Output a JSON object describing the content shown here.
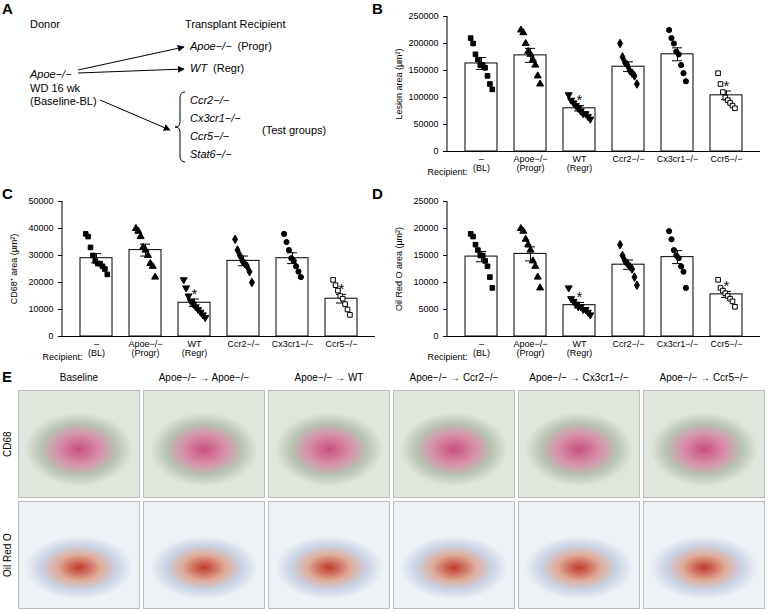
{
  "panel_labels": [
    "A",
    "B",
    "C",
    "D",
    "E"
  ],
  "diagram": {
    "donor_header": "Donor",
    "recipient_header": "Transplant Recipient",
    "donor": "Apoe−/−",
    "donor_notes": [
      "WD 16 wk",
      "(Baseline-BL)"
    ],
    "recipients": [
      {
        "name": "Apoe−/−",
        "note": "(Progr)"
      },
      {
        "name": "WT",
        "note": "(Regr)"
      },
      {
        "name": "Ccr2−/−"
      },
      {
        "name": "Cx3cr1−/−"
      },
      {
        "name": "Ccr5−/−"
      },
      {
        "name": "Stat6−/−"
      }
    ],
    "test_group_label": "(Test groups)"
  },
  "chart_data": [
    {
      "type": "bar",
      "ylabel": "Lesion area (µm²)",
      "xlabel": "Recipient:",
      "categories": [
        "–\n(BL)",
        "Apoe−/−\n(Progr)",
        "WT\n(Regr)",
        "Ccr2−/−",
        "Cx3cr1−/−",
        "Ccr5−/−"
      ],
      "values": [
        163000,
        178000,
        80000,
        157000,
        180000,
        104000
      ],
      "errors": [
        11000,
        13000,
        5000,
        9000,
        12000,
        8000
      ],
      "points": [
        [
          210000,
          200000,
          180000,
          170000,
          160000,
          160000,
          155000,
          140000,
          125000,
          115000
        ],
        [
          225000,
          220000,
          200000,
          185000,
          180000,
          170000,
          160000,
          140000,
          125000
        ],
        [
          105000,
          95000,
          90000,
          85000,
          80000,
          75000,
          70000,
          70000,
          65000,
          60000
        ],
        [
          200000,
          175000,
          165000,
          160000,
          150000,
          145000,
          140000,
          125000
        ],
        [
          225000,
          210000,
          200000,
          185000,
          180000,
          160000,
          145000,
          130000
        ],
        [
          145000,
          125000,
          110000,
          100000,
          95000,
          90000,
          85000,
          80000
        ]
      ],
      "markers": [
        "square",
        "triangle",
        "triangle-down",
        "diamond",
        "circle",
        "square-open"
      ],
      "color": "#000000",
      "ylim": [
        0,
        250000
      ],
      "yticks": [
        0,
        50000,
        100000,
        150000,
        200000,
        250000
      ],
      "annotations": [
        {
          "category": "WT\n(Regr)",
          "text": "*"
        },
        {
          "category": "Ccr5−/−",
          "text": "*"
        }
      ]
    },
    {
      "type": "bar",
      "ylabel": "CD68⁺ area (µm²)",
      "xlabel": "Recipient:",
      "categories": [
        "–\n(BL)",
        "Apoe−/−\n(Progr)",
        "WT\n(Regr)",
        "Ccr2−/−",
        "Cx3cr1−/−",
        "Ccr5−/−"
      ],
      "values": [
        29000,
        32000,
        12500,
        28000,
        29000,
        14000
      ],
      "errors": [
        1700,
        2200,
        1400,
        1800,
        2000,
        1600
      ],
      "points": [
        [
          38000,
          37000,
          33000,
          30000,
          28000,
          27000,
          27000,
          26000,
          25000,
          23000
        ],
        [
          40000,
          39000,
          37000,
          33000,
          32000,
          30000,
          27000,
          26000,
          22000
        ],
        [
          21000,
          18000,
          15000,
          13000,
          12000,
          11000,
          10000,
          9000,
          8000,
          7000
        ],
        [
          36000,
          32000,
          30000,
          28000,
          27000,
          26000,
          24000,
          20000
        ],
        [
          38000,
          35000,
          32000,
          29000,
          28000,
          26000,
          24000,
          22000
        ],
        [
          21000,
          19000,
          17000,
          15000,
          14000,
          12000,
          10000,
          8000
        ]
      ],
      "markers": [
        "square",
        "triangle",
        "triangle-down",
        "diamond",
        "circle",
        "square-open"
      ],
      "color": "#000000",
      "ylim": [
        0,
        50000
      ],
      "yticks": [
        0,
        10000,
        20000,
        30000,
        40000,
        50000
      ],
      "annotations": [
        {
          "category": "WT\n(Regr)",
          "text": "*"
        },
        {
          "category": "Ccr5−/−",
          "text": "*"
        }
      ]
    },
    {
      "type": "bar",
      "ylabel": "Oil Red O area (µm²)",
      "xlabel": "Recipient:",
      "categories": [
        "–\n(BL)",
        "Apoe−/−\n(Progr)",
        "WT\n(Regr)",
        "Ccr2−/−",
        "Cx3cr1−/−",
        "Ccr5−/−"
      ],
      "values": [
        14800,
        15300,
        5800,
        13300,
        14700,
        7800
      ],
      "errors": [
        950,
        1300,
        500,
        850,
        1200,
        550
      ],
      "points": [
        [
          19000,
          18500,
          17000,
          16000,
          15000,
          15000,
          14000,
          13000,
          11000,
          9000
        ],
        [
          20000,
          19500,
          18000,
          17000,
          16000,
          14000,
          13000,
          11000,
          9000
        ],
        [
          9000,
          7000,
          6500,
          6000,
          5500,
          5500,
          5000,
          5000,
          4500,
          4000
        ],
        [
          17000,
          15000,
          14000,
          13500,
          13000,
          12500,
          11000,
          9500
        ],
        [
          19500,
          18000,
          16000,
          15000,
          14500,
          13000,
          12000,
          9000
        ],
        [
          10500,
          9000,
          8500,
          8000,
          7500,
          7000,
          6500,
          5500
        ]
      ],
      "markers": [
        "square",
        "triangle",
        "triangle-down",
        "diamond",
        "circle",
        "square-open"
      ],
      "color": "#000000",
      "ylim": [
        0,
        25000
      ],
      "yticks": [
        0,
        5000,
        10000,
        15000,
        20000,
        25000
      ],
      "annotations": [
        {
          "category": "WT\n(Regr)",
          "text": "*"
        },
        {
          "category": "Ccr5−/−",
          "text": "*"
        }
      ]
    }
  ],
  "histology": {
    "columns": [
      "Baseline",
      "Apoe−/− → Apoe−/−",
      "Apoe−/− → WT",
      "Apoe−/− → Ccr2−/−",
      "Apoe−/− → Cx3cr1−/−",
      "Apoe−/− → Ccr5−/−"
    ],
    "rows": [
      "CD68",
      "Oil Red O"
    ]
  }
}
